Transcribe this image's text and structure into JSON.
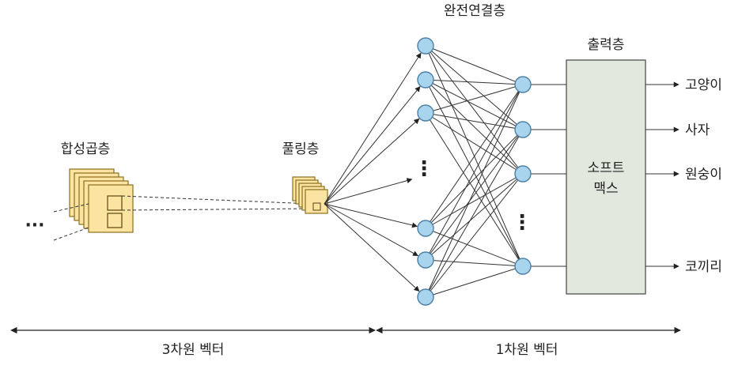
{
  "labels": {
    "conv_layer": "합성곱층",
    "pool_layer": "풀링층",
    "fc_layer": "완전연결층",
    "output_layer": "출력층",
    "softmax_line1": "소프트",
    "softmax_line2": "맥스",
    "left_ellipsis": "···",
    "fc_ellipsis": "⋮",
    "hidden_ellipsis": "⋮",
    "range_3d": "3차원 벡터",
    "range_1d": "1차원 벡터"
  },
  "outputs": [
    "고양이",
    "사자",
    "원숭이",
    "코끼리"
  ],
  "colors": {
    "feature_map_fill": "#fbe3a2",
    "feature_map_stroke": "#8a6d1e",
    "neuron_fill": "#a9d4ee",
    "neuron_stroke": "#4b7fa6",
    "softmax_fill": "#e3e8df"
  }
}
